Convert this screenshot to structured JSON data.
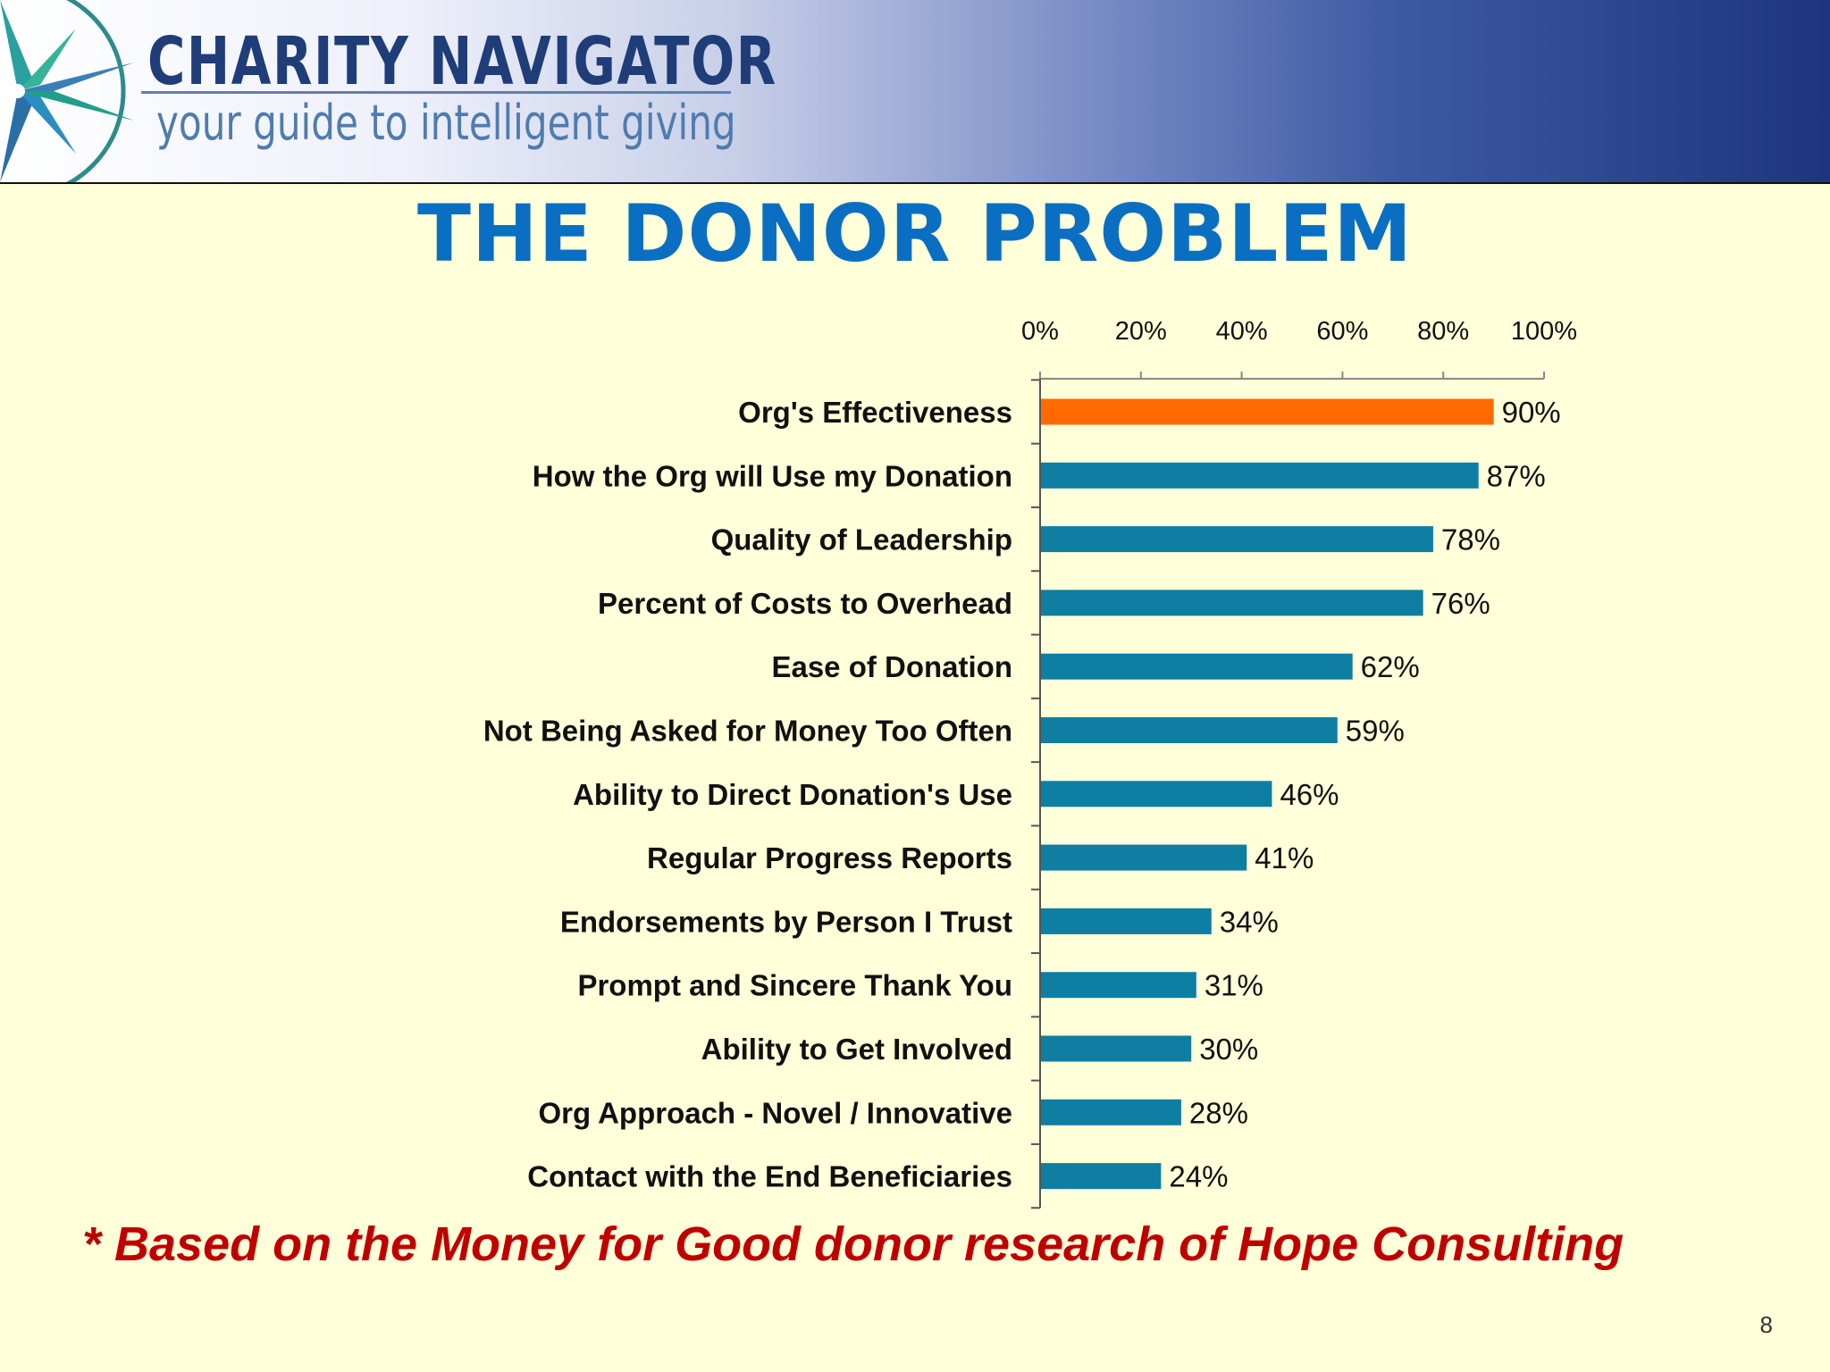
{
  "header": {
    "brand_name": "CHARITY NAVIGATOR",
    "tagline": "your guide to intelligent giving"
  },
  "slide": {
    "title": "THE DONOR PROBLEM",
    "footnote": "* Based on the Money for Good donor research of Hope Consulting",
    "page_number": "8"
  },
  "colors": {
    "highlight_bar": "#ff6a00",
    "bar": "#0e7ea3",
    "title": "#0a6fc2",
    "footnote": "#c00000"
  },
  "chart_data": {
    "type": "bar",
    "orientation": "horizontal",
    "title": "",
    "xlabel": "",
    "ylabel": "",
    "xlim": [
      0,
      100
    ],
    "x_axis_position": "top",
    "x_ticks": [
      "0%",
      "20%",
      "40%",
      "60%",
      "80%",
      "100%"
    ],
    "categories": [
      "Org's Effectiveness",
      "How the Org will Use my Donation",
      "Quality of Leadership",
      "Percent of Costs to Overhead",
      "Ease of Donation",
      "Not Being Asked for Money Too Often",
      "Ability to Direct Donation's Use",
      "Regular Progress Reports",
      "Endorsements by Person I Trust",
      "Prompt and Sincere Thank You",
      "Ability to Get Involved",
      "Org Approach - Novel / Innovative",
      "Contact with the End Beneficiaries"
    ],
    "values": [
      90,
      87,
      78,
      76,
      62,
      59,
      46,
      41,
      34,
      31,
      30,
      28,
      24
    ],
    "value_labels": [
      "90%",
      "87%",
      "78%",
      "76%",
      "62%",
      "59%",
      "46%",
      "41%",
      "34%",
      "31%",
      "30%",
      "28%",
      "24%"
    ],
    "highlighted_index": 0,
    "grid": false,
    "legend": "none"
  }
}
